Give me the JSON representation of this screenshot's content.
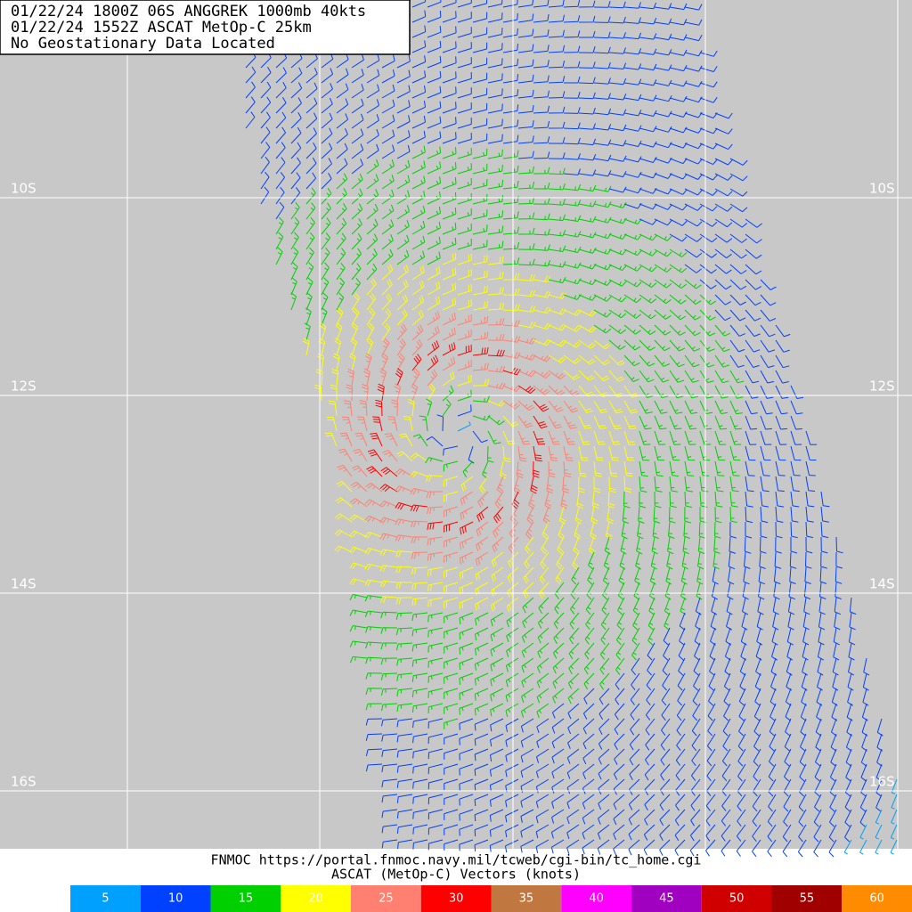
{
  "header": {
    "lines": [
      "01/22/24 1800Z  06S ANGGREK 1000mb 40kts",
      "01/22/24 1552Z  ASCAT MetOp-C 25km",
      "No Geostationary Data Located"
    ]
  },
  "grid": {
    "lat_labels": [
      "10S",
      "12S",
      "14S",
      "16S"
    ]
  },
  "footer": {
    "lines": [
      "FNMOC https://portal.fnmoc.navy.mil/tcweb/cgi-bin/tc_home.cgi",
      "ASCAT (MetOp-C) Vectors (knots)"
    ]
  },
  "legend": {
    "items": [
      {
        "value": 5,
        "color": "#00a0ff"
      },
      {
        "value": 10,
        "color": "#0040ff"
      },
      {
        "value": 15,
        "color": "#00d000"
      },
      {
        "value": 20,
        "color": "#ffff00"
      },
      {
        "value": 25,
        "color": "#ff8070"
      },
      {
        "value": 30,
        "color": "#ff0000"
      },
      {
        "value": 35,
        "color": "#c07840"
      },
      {
        "value": 40,
        "color": "#ff00ff"
      },
      {
        "value": 45,
        "color": "#a000c0"
      },
      {
        "value": 50,
        "color": "#d00000"
      },
      {
        "value": 55,
        "color": "#a00000"
      },
      {
        "value": 60,
        "color": "#ff8c00"
      }
    ]
  }
}
